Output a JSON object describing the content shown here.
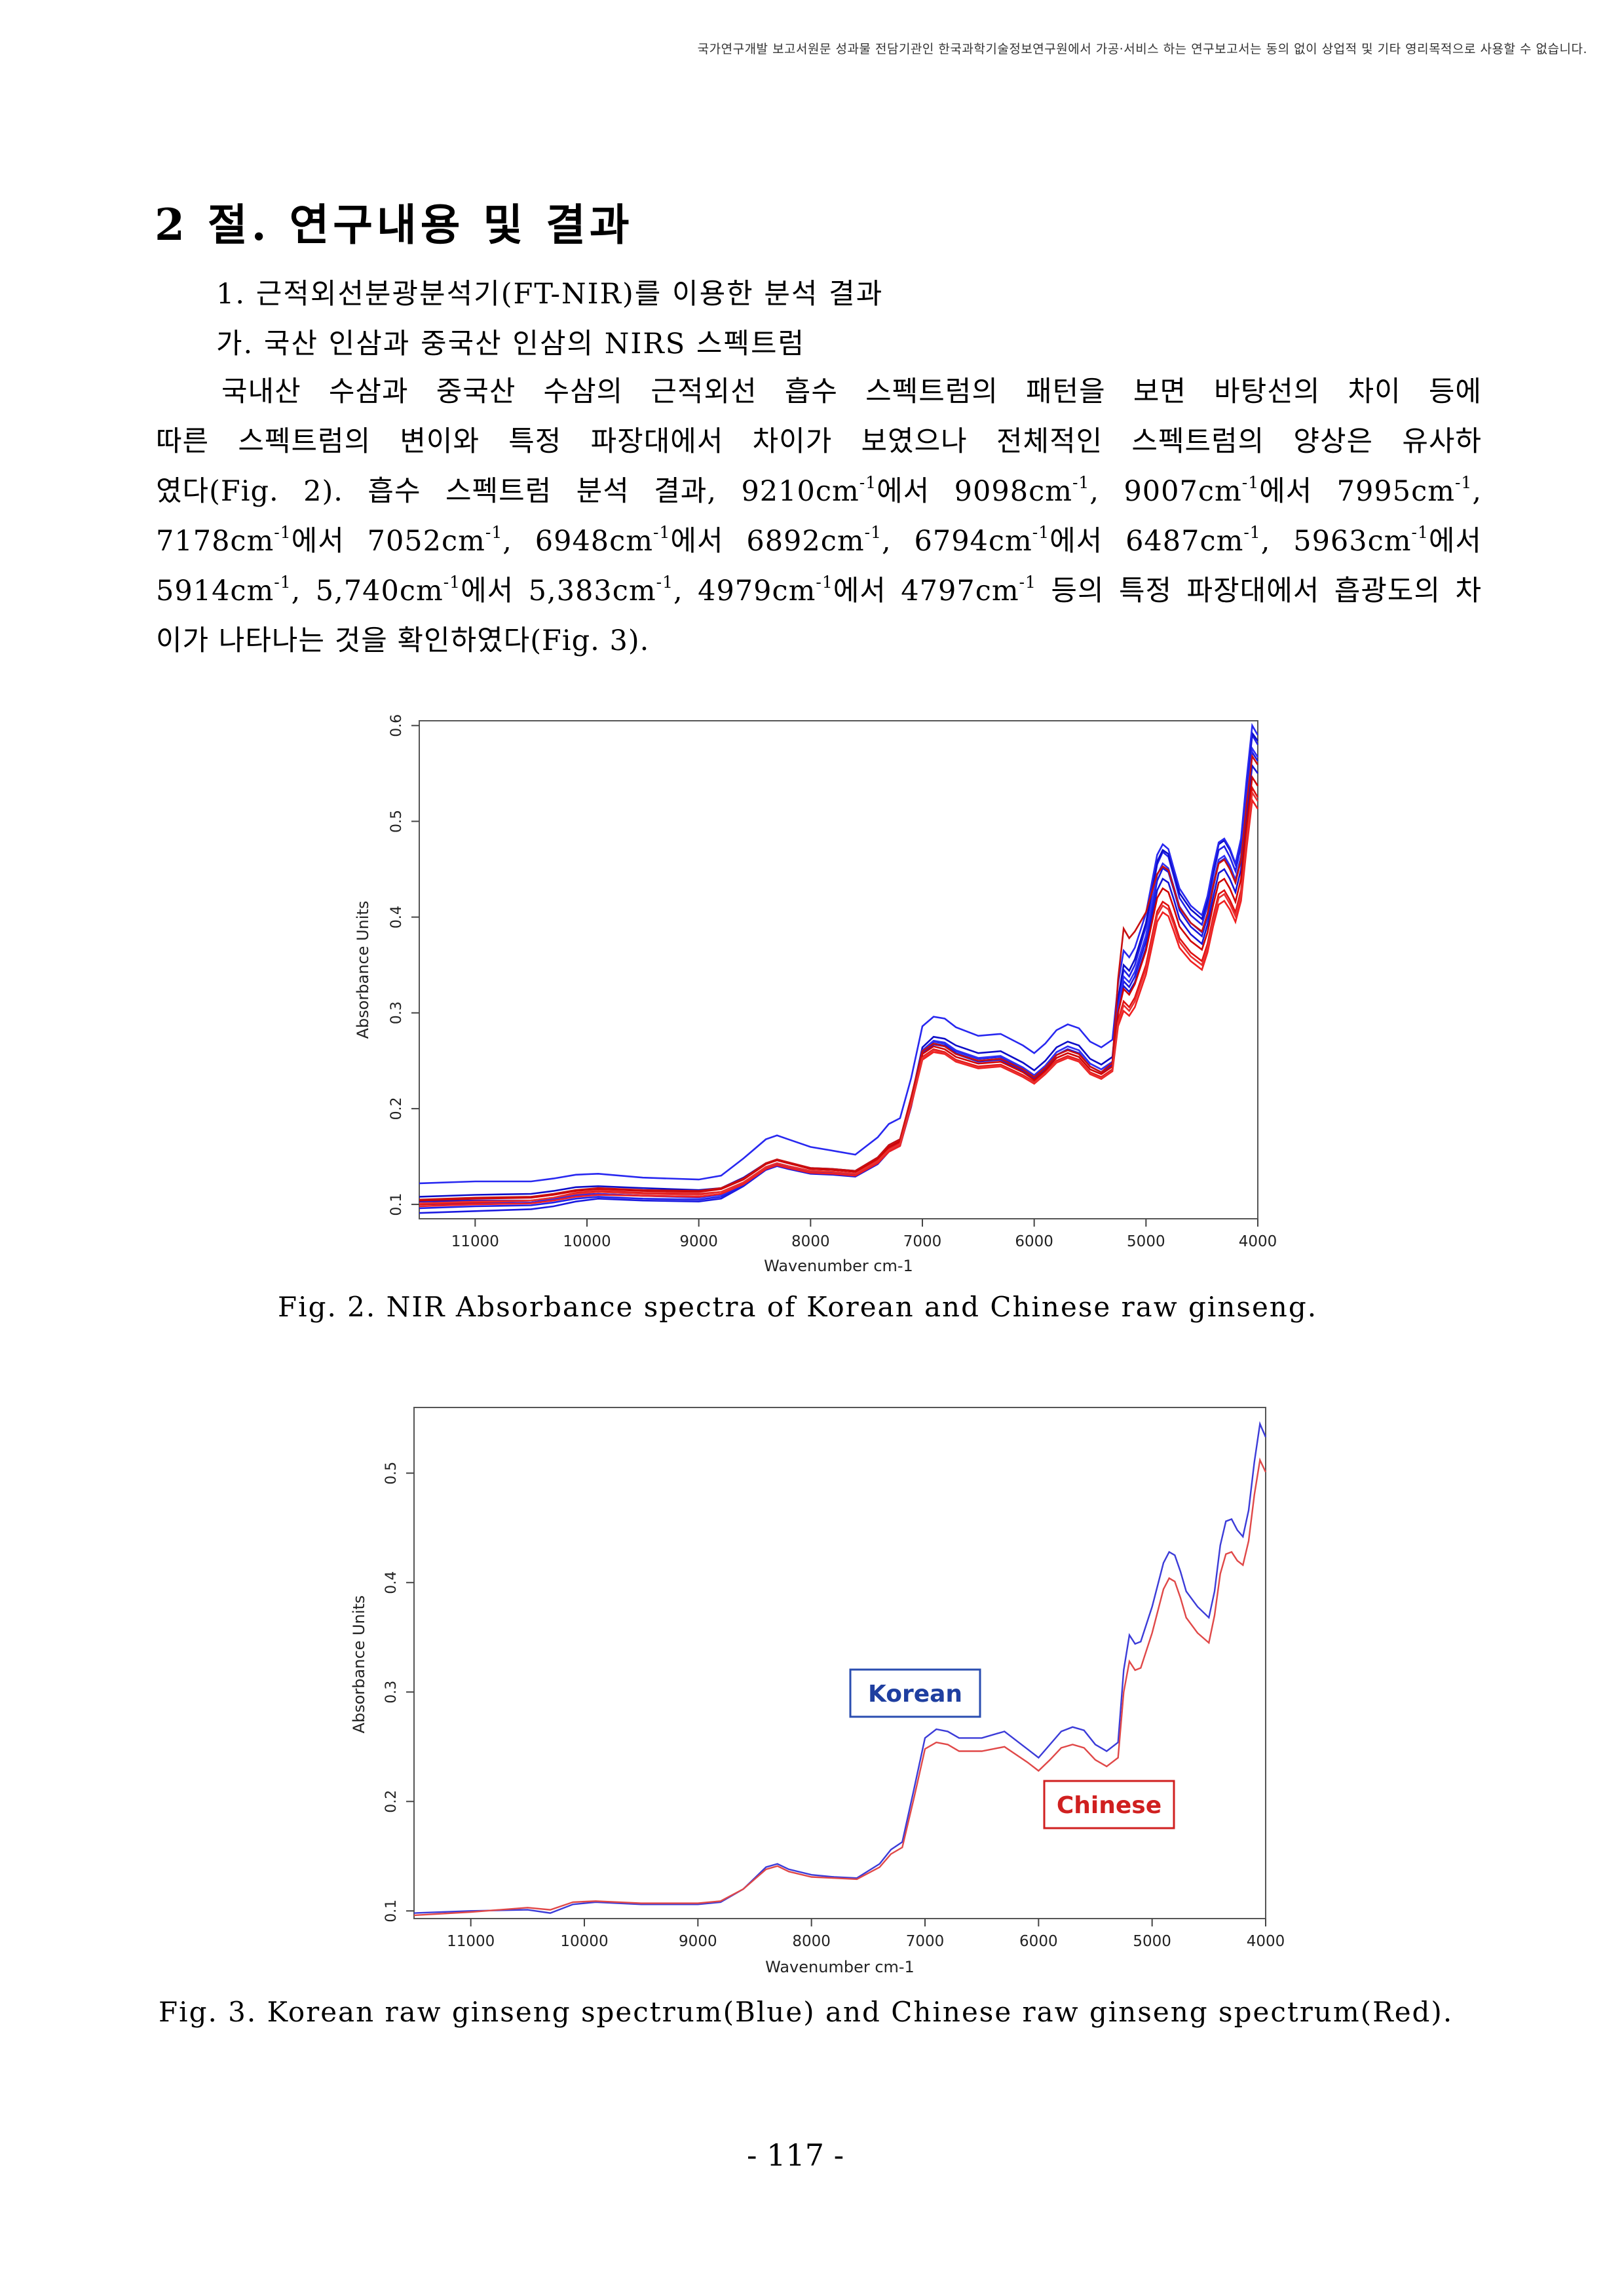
{
  "header_notice": "국가연구개발 보고서원문 성과물 전담기관인 한국과학기술정보연구원에서 가공‧서비스 하는 연구보고서는 동의 없이 상업적 및 기타 영리목적으로 사용할 수 없습니다.",
  "section_title": "2 절. 연구내용 및 결과",
  "subheading_1": "1. 근적외선분광분석기(FT-NIR)를 이용한 분석 결과",
  "subheading_2": "가. 국산 인삼과 중국산 인삼의 NIRS 스펙트럼",
  "paragraph": {
    "l1": "국내산 수삼과 중국산 수삼의 근적외선 흡수 스펙트럼의 패턴을 보면 바탕선의 차이 등에",
    "l2": "따른 스펙트럼의 변이와 특정 파장대에서 차이가 보였으나 전체적인 스펙트럼의 양상은 유사하",
    "l3a": "였다(Fig. 2). 흡수 스펙트럼 분석 결과, 9210cm",
    "l3b": "에서 9098cm",
    "l3c": ", 9007cm",
    "l3d": "에서 7995cm",
    "l3e": ",",
    "l4a": "7178cm",
    "l4b": "에서 7052cm",
    "l4c": ", 6948cm",
    "l4d": "에서 6892cm",
    "l4e": ", 6794cm",
    "l4f": "에서 6487cm",
    "l4g": ", 5963cm",
    "l4h": "에서",
    "l5a": "5914cm",
    "l5b": ", 5,740cm",
    "l5c": "에서 5,383cm",
    "l5d": ", 4979cm",
    "l5e": "에서 4797cm",
    "l5f": " 등의 특정 파장대에서 흡광도의 차",
    "l6": "이가 나타나는 것을 확인하였다(Fig. 3).",
    "sup": "-1"
  },
  "figure_2": {
    "caption": "Fig. 2. NIR Absorbance spectra of Korean and Chinese raw ginseng.",
    "chart_data": {
      "type": "line",
      "xlabel": "Wavenumber cm-1",
      "ylabel": "Absorbance Units",
      "x_ticks": [
        "11000",
        "10000",
        "9000",
        "8000",
        "7000",
        "6000",
        "5000",
        "4000"
      ],
      "y_ticks": [
        "0.1",
        "0.2",
        "0.3",
        "0.4",
        "0.5",
        "0.6"
      ],
      "xlim": [
        11500,
        4000
      ],
      "ylim": [
        0.085,
        0.605
      ],
      "x": [
        11500,
        11000,
        10500,
        10300,
        10100,
        9900,
        9500,
        9000,
        8800,
        8600,
        8400,
        8300,
        8200,
        8000,
        7800,
        7600,
        7400,
        7300,
        7200,
        7100,
        7000,
        6900,
        6800,
        6700,
        6500,
        6300,
        6100,
        6000,
        5900,
        5800,
        5700,
        5600,
        5500,
        5400,
        5300,
        5250,
        5200,
        5150,
        5100,
        5000,
        4900,
        4850,
        4800,
        4750,
        4700,
        4600,
        4500,
        4450,
        4400,
        4350,
        4300,
        4250,
        4200,
        4150,
        4100,
        4050,
        4000
      ],
      "series": [
        {
          "color": "#1515d6",
          "values": [
            0.103,
            0.104,
            0.104,
            0.106,
            0.11,
            0.111,
            0.109,
            0.108,
            0.11,
            0.122,
            0.138,
            0.142,
            0.139,
            0.134,
            0.133,
            0.131,
            0.145,
            0.158,
            0.164,
            0.205,
            0.258,
            0.268,
            0.266,
            0.258,
            0.25,
            0.252,
            0.24,
            0.232,
            0.242,
            0.256,
            0.262,
            0.258,
            0.244,
            0.238,
            0.246,
            0.3,
            0.328,
            0.322,
            0.332,
            0.368,
            0.428,
            0.44,
            0.436,
            0.418,
            0.398,
            0.382,
            0.372,
            0.392,
            0.42,
            0.446,
            0.45,
            0.44,
            0.426,
            0.45,
            0.508,
            0.558,
            0.55
          ]
        },
        {
          "color": "#1a1ae0",
          "values": [
            0.091,
            0.093,
            0.095,
            0.098,
            0.103,
            0.106,
            0.104,
            0.103,
            0.106,
            0.119,
            0.136,
            0.14,
            0.137,
            0.132,
            0.131,
            0.129,
            0.142,
            0.155,
            0.161,
            0.202,
            0.257,
            0.267,
            0.265,
            0.257,
            0.249,
            0.251,
            0.239,
            0.231,
            0.241,
            0.256,
            0.262,
            0.258,
            0.244,
            0.238,
            0.246,
            0.303,
            0.333,
            0.327,
            0.338,
            0.375,
            0.438,
            0.451,
            0.447,
            0.428,
            0.407,
            0.39,
            0.38,
            0.4,
            0.43,
            0.457,
            0.461,
            0.451,
            0.436,
            0.46,
            0.52,
            0.572,
            0.563
          ]
        },
        {
          "color": "#2020e8",
          "values": [
            0.096,
            0.098,
            0.099,
            0.102,
            0.106,
            0.108,
            0.106,
            0.105,
            0.108,
            0.12,
            0.137,
            0.141,
            0.138,
            0.133,
            0.132,
            0.13,
            0.143,
            0.156,
            0.162,
            0.204,
            0.259,
            0.27,
            0.268,
            0.26,
            0.252,
            0.254,
            0.242,
            0.234,
            0.244,
            0.259,
            0.265,
            0.261,
            0.247,
            0.241,
            0.249,
            0.31,
            0.345,
            0.338,
            0.35,
            0.39,
            0.455,
            0.468,
            0.463,
            0.442,
            0.42,
            0.402,
            0.392,
            0.412,
            0.443,
            0.47,
            0.474,
            0.463,
            0.448,
            0.474,
            0.535,
            0.59,
            0.58
          ]
        },
        {
          "color": "#0d0dc8",
          "values": [
            0.108,
            0.11,
            0.111,
            0.114,
            0.118,
            0.119,
            0.117,
            0.115,
            0.117,
            0.128,
            0.143,
            0.146,
            0.143,
            0.138,
            0.137,
            0.135,
            0.149,
            0.162,
            0.168,
            0.21,
            0.264,
            0.275,
            0.273,
            0.266,
            0.258,
            0.26,
            0.248,
            0.24,
            0.25,
            0.264,
            0.27,
            0.266,
            0.252,
            0.246,
            0.254,
            0.315,
            0.35,
            0.344,
            0.356,
            0.394,
            0.458,
            0.47,
            0.466,
            0.446,
            0.425,
            0.408,
            0.398,
            0.418,
            0.448,
            0.476,
            0.48,
            0.47,
            0.455,
            0.48,
            0.54,
            0.592,
            0.584
          ]
        },
        {
          "color": "#2828f0",
          "values": [
            0.122,
            0.124,
            0.124,
            0.127,
            0.131,
            0.132,
            0.128,
            0.126,
            0.13,
            0.148,
            0.168,
            0.172,
            0.168,
            0.16,
            0.156,
            0.152,
            0.17,
            0.184,
            0.19,
            0.232,
            0.286,
            0.296,
            0.294,
            0.285,
            0.276,
            0.278,
            0.266,
            0.258,
            0.268,
            0.282,
            0.288,
            0.284,
            0.27,
            0.264,
            0.272,
            0.33,
            0.365,
            0.358,
            0.368,
            0.404,
            0.465,
            0.476,
            0.471,
            0.45,
            0.43,
            0.412,
            0.402,
            0.422,
            0.452,
            0.478,
            0.482,
            0.472,
            0.456,
            0.482,
            0.544,
            0.6,
            0.59
          ]
        },
        {
          "color": "#3030f5",
          "values": [
            0.1,
            0.101,
            0.102,
            0.105,
            0.109,
            0.111,
            0.109,
            0.107,
            0.11,
            0.122,
            0.139,
            0.143,
            0.14,
            0.135,
            0.134,
            0.132,
            0.146,
            0.159,
            0.165,
            0.207,
            0.261,
            0.271,
            0.269,
            0.261,
            0.253,
            0.255,
            0.243,
            0.235,
            0.245,
            0.259,
            0.265,
            0.261,
            0.247,
            0.241,
            0.249,
            0.306,
            0.338,
            0.332,
            0.343,
            0.381,
            0.444,
            0.456,
            0.451,
            0.431,
            0.411,
            0.394,
            0.384,
            0.404,
            0.434,
            0.46,
            0.464,
            0.454,
            0.439,
            0.464,
            0.524,
            0.576,
            0.567
          ]
        },
        {
          "color": "#e01010",
          "values": [
            0.1,
            0.102,
            0.104,
            0.107,
            0.112,
            0.114,
            0.112,
            0.111,
            0.113,
            0.123,
            0.139,
            0.143,
            0.14,
            0.135,
            0.134,
            0.132,
            0.146,
            0.158,
            0.164,
            0.206,
            0.254,
            0.262,
            0.259,
            0.251,
            0.244,
            0.246,
            0.235,
            0.228,
            0.238,
            0.25,
            0.255,
            0.251,
            0.238,
            0.233,
            0.241,
            0.292,
            0.312,
            0.306,
            0.316,
            0.35,
            0.406,
            0.416,
            0.412,
            0.396,
            0.378,
            0.363,
            0.354,
            0.372,
            0.4,
            0.424,
            0.428,
            0.418,
            0.405,
            0.428,
            0.484,
            0.535,
            0.525
          ]
        },
        {
          "color": "#d00000",
          "values": [
            0.104,
            0.106,
            0.107,
            0.11,
            0.114,
            0.116,
            0.114,
            0.113,
            0.116,
            0.126,
            0.142,
            0.146,
            0.143,
            0.137,
            0.136,
            0.134,
            0.148,
            0.16,
            0.166,
            0.209,
            0.257,
            0.265,
            0.262,
            0.254,
            0.247,
            0.249,
            0.238,
            0.23,
            0.24,
            0.253,
            0.258,
            0.254,
            0.241,
            0.236,
            0.244,
            0.3,
            0.325,
            0.319,
            0.33,
            0.365,
            0.42,
            0.43,
            0.426,
            0.409,
            0.39,
            0.375,
            0.366,
            0.384,
            0.412,
            0.436,
            0.44,
            0.43,
            0.416,
            0.44,
            0.496,
            0.546,
            0.537
          ]
        },
        {
          "color": "#f02020",
          "values": [
            0.098,
            0.1,
            0.101,
            0.104,
            0.108,
            0.11,
            0.109,
            0.108,
            0.111,
            0.121,
            0.137,
            0.141,
            0.138,
            0.133,
            0.132,
            0.13,
            0.143,
            0.155,
            0.161,
            0.203,
            0.251,
            0.259,
            0.257,
            0.249,
            0.242,
            0.244,
            0.233,
            0.226,
            0.236,
            0.248,
            0.253,
            0.249,
            0.236,
            0.231,
            0.239,
            0.286,
            0.302,
            0.297,
            0.306,
            0.34,
            0.395,
            0.405,
            0.401,
            0.385,
            0.368,
            0.354,
            0.345,
            0.363,
            0.39,
            0.413,
            0.417,
            0.408,
            0.395,
            0.417,
            0.472,
            0.522,
            0.513
          ]
        },
        {
          "color": "#c81010",
          "values": [
            0.105,
            0.107,
            0.108,
            0.111,
            0.115,
            0.117,
            0.115,
            0.114,
            0.117,
            0.127,
            0.143,
            0.147,
            0.144,
            0.138,
            0.137,
            0.135,
            0.149,
            0.162,
            0.168,
            0.212,
            0.26,
            0.268,
            0.265,
            0.257,
            0.25,
            0.252,
            0.241,
            0.233,
            0.243,
            0.256,
            0.261,
            0.257,
            0.244,
            0.238,
            0.248,
            0.335,
            0.388,
            0.378,
            0.385,
            0.405,
            0.445,
            0.453,
            0.449,
            0.43,
            0.41,
            0.394,
            0.385,
            0.403,
            0.432,
            0.456,
            0.46,
            0.45,
            0.436,
            0.46,
            0.518,
            0.568,
            0.559
          ]
        },
        {
          "color": "#e83030",
          "values": [
            0.101,
            0.103,
            0.104,
            0.107,
            0.111,
            0.113,
            0.111,
            0.11,
            0.113,
            0.123,
            0.139,
            0.143,
            0.14,
            0.135,
            0.134,
            0.132,
            0.145,
            0.157,
            0.163,
            0.205,
            0.253,
            0.261,
            0.258,
            0.25,
            0.243,
            0.245,
            0.234,
            0.227,
            0.237,
            0.249,
            0.254,
            0.25,
            0.237,
            0.232,
            0.24,
            0.29,
            0.308,
            0.302,
            0.312,
            0.346,
            0.402,
            0.412,
            0.408,
            0.392,
            0.374,
            0.359,
            0.35,
            0.368,
            0.396,
            0.42,
            0.424,
            0.414,
            0.401,
            0.424,
            0.48,
            0.53,
            0.521
          ]
        }
      ]
    }
  },
  "figure_3": {
    "caption": "Fig. 3. Korean raw ginseng spectrum(Blue) and Chinese raw ginseng spectrum(Red).",
    "label_korean": "Korean",
    "label_chinese": "Chinese",
    "chart_data": {
      "type": "line",
      "xlabel": "Wavenumber cm-1",
      "ylabel": "Absorbance Units",
      "x_ticks": [
        "11000",
        "10000",
        "9000",
        "8000",
        "7000",
        "6000",
        "5000",
        "4000"
      ],
      "y_ticks": [
        "0.1",
        "0.2",
        "0.3",
        "0.4",
        "0.5"
      ],
      "xlim": [
        11500,
        4000
      ],
      "ylim": [
        0.093,
        0.56
      ],
      "x": [
        11500,
        11000,
        10500,
        10300,
        10100,
        9900,
        9500,
        9000,
        8800,
        8600,
        8400,
        8300,
        8200,
        8000,
        7800,
        7600,
        7400,
        7300,
        7200,
        7100,
        7000,
        6900,
        6800,
        6700,
        6500,
        6300,
        6100,
        6000,
        5900,
        5800,
        5700,
        5600,
        5500,
        5400,
        5300,
        5250,
        5200,
        5150,
        5100,
        5000,
        4900,
        4850,
        4800,
        4750,
        4700,
        4600,
        4500,
        4450,
        4400,
        4350,
        4300,
        4250,
        4200,
        4150,
        4100,
        4050,
        4000
      ],
      "series": [
        {
          "name": "Korean",
          "color": "#3b3bd8",
          "values": [
            0.098,
            0.1,
            0.101,
            0.098,
            0.106,
            0.108,
            0.106,
            0.106,
            0.108,
            0.12,
            0.14,
            0.143,
            0.138,
            0.133,
            0.131,
            0.13,
            0.143,
            0.156,
            0.163,
            0.21,
            0.258,
            0.266,
            0.264,
            0.258,
            0.258,
            0.264,
            0.248,
            0.24,
            0.252,
            0.264,
            0.268,
            0.265,
            0.252,
            0.246,
            0.254,
            0.32,
            0.352,
            0.344,
            0.346,
            0.378,
            0.418,
            0.428,
            0.425,
            0.41,
            0.392,
            0.378,
            0.368,
            0.392,
            0.434,
            0.456,
            0.458,
            0.448,
            0.442,
            0.466,
            0.51,
            0.545,
            0.533
          ]
        },
        {
          "name": "Chinese",
          "color": "#e04848",
          "values": [
            0.096,
            0.099,
            0.103,
            0.101,
            0.108,
            0.109,
            0.107,
            0.107,
            0.109,
            0.12,
            0.138,
            0.141,
            0.136,
            0.131,
            0.13,
            0.129,
            0.14,
            0.152,
            0.158,
            0.202,
            0.248,
            0.254,
            0.252,
            0.246,
            0.246,
            0.25,
            0.236,
            0.228,
            0.238,
            0.249,
            0.252,
            0.249,
            0.238,
            0.232,
            0.24,
            0.3,
            0.328,
            0.32,
            0.322,
            0.354,
            0.394,
            0.404,
            0.401,
            0.386,
            0.368,
            0.354,
            0.345,
            0.37,
            0.408,
            0.426,
            0.428,
            0.42,
            0.416,
            0.438,
            0.48,
            0.512,
            0.501
          ]
        }
      ]
    }
  },
  "page_number": "- 117 -"
}
